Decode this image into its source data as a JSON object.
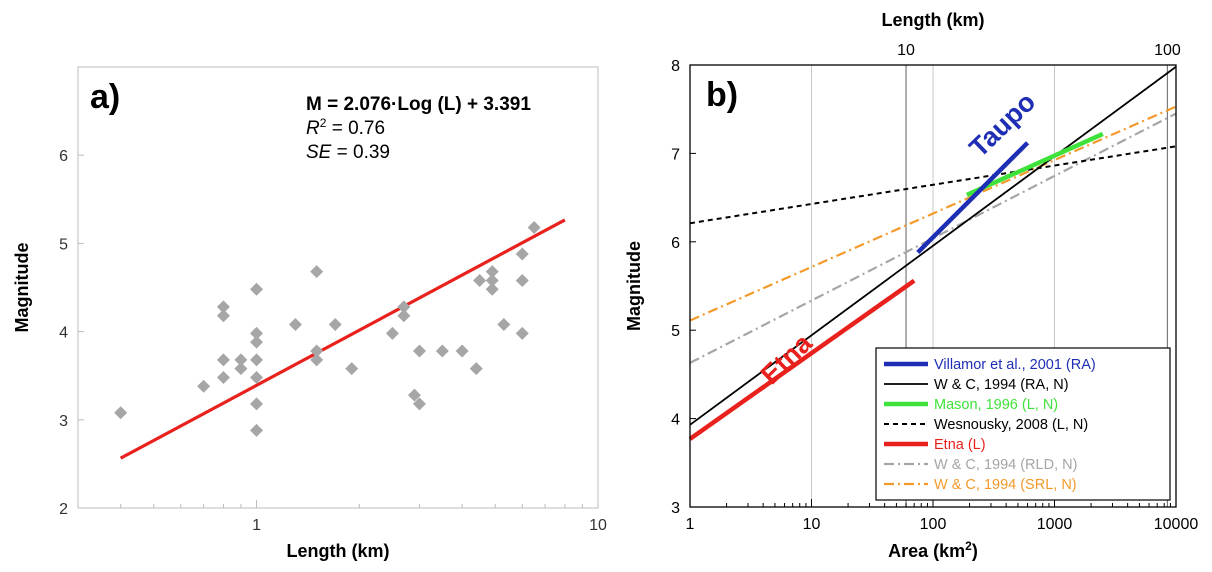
{
  "chart_data": [
    {
      "type": "scatter",
      "panel_label": "a)",
      "xlabel": "Length (km)",
      "ylabel": "Magnitude",
      "xscale": "log",
      "xlim": [
        0.3,
        10
      ],
      "ylim": [
        2,
        7
      ],
      "x_ticks": [
        {
          "v": 1,
          "label": "1"
        },
        {
          "v": 10,
          "label": "10"
        }
      ],
      "y_ticks": [
        {
          "v": 2,
          "label": "2"
        },
        {
          "v": 3,
          "label": "3"
        },
        {
          "v": 4,
          "label": "4"
        },
        {
          "v": 5,
          "label": "5"
        },
        {
          "v": 6,
          "label": "6"
        }
      ],
      "grid": false,
      "equation": {
        "line1": "M = 2.076·Log (L) + 3.391",
        "r2_label": "R",
        "r2_sup": "2",
        "r2_value": " = 0.76",
        "se_label": "SE",
        "se_value": " = 0.39"
      },
      "fit": {
        "slope": 2.076,
        "intercept": 3.391,
        "x_range": [
          0.4,
          8
        ],
        "color": "#e8211d"
      },
      "marker_color": "#a6a6a6",
      "points": [
        {
          "x": 0.4,
          "y": 3.08
        },
        {
          "x": 0.7,
          "y": 3.38
        },
        {
          "x": 0.8,
          "y": 3.48
        },
        {
          "x": 0.8,
          "y": 3.68
        },
        {
          "x": 0.8,
          "y": 4.18
        },
        {
          "x": 0.8,
          "y": 4.28
        },
        {
          "x": 0.9,
          "y": 3.58
        },
        {
          "x": 0.9,
          "y": 3.68
        },
        {
          "x": 1.0,
          "y": 2.88
        },
        {
          "x": 1.0,
          "y": 3.18
        },
        {
          "x": 1.0,
          "y": 3.48
        },
        {
          "x": 1.0,
          "y": 3.68
        },
        {
          "x": 1.0,
          "y": 3.88
        },
        {
          "x": 1.0,
          "y": 3.98
        },
        {
          "x": 1.0,
          "y": 4.48
        },
        {
          "x": 1.3,
          "y": 4.08
        },
        {
          "x": 1.5,
          "y": 3.68
        },
        {
          "x": 1.5,
          "y": 3.78
        },
        {
          "x": 1.5,
          "y": 4.68
        },
        {
          "x": 1.7,
          "y": 4.08
        },
        {
          "x": 1.9,
          "y": 3.58
        },
        {
          "x": 2.5,
          "y": 3.98
        },
        {
          "x": 2.7,
          "y": 4.18
        },
        {
          "x": 2.7,
          "y": 4.28
        },
        {
          "x": 2.9,
          "y": 3.28
        },
        {
          "x": 3.0,
          "y": 3.18
        },
        {
          "x": 3.0,
          "y": 3.78
        },
        {
          "x": 3.5,
          "y": 3.78
        },
        {
          "x": 4.0,
          "y": 3.78
        },
        {
          "x": 4.4,
          "y": 3.58
        },
        {
          "x": 4.5,
          "y": 4.58
        },
        {
          "x": 4.9,
          "y": 4.48
        },
        {
          "x": 4.9,
          "y": 4.58
        },
        {
          "x": 4.9,
          "y": 4.68
        },
        {
          "x": 5.3,
          "y": 4.08
        },
        {
          "x": 6.0,
          "y": 3.98
        },
        {
          "x": 6.0,
          "y": 4.58
        },
        {
          "x": 6.0,
          "y": 4.88
        },
        {
          "x": 6.5,
          "y": 5.18
        }
      ]
    },
    {
      "type": "line",
      "panel_label": "b)",
      "xlabel": "Area (km",
      "xlabel_sup": "2",
      "xlabel_end": ")",
      "ylabel": "Magnitude",
      "top_xlabel": "Length (km)",
      "xscale": "log",
      "xlim": [
        1,
        10000
      ],
      "ylim": [
        3,
        8
      ],
      "x_ticks": [
        {
          "v": 1,
          "label": "1"
        },
        {
          "v": 10,
          "label": "10"
        },
        {
          "v": 100,
          "label": "100"
        },
        {
          "v": 1000,
          "label": "1000"
        },
        {
          "v": 10000,
          "label": "10000"
        }
      ],
      "y_ticks": [
        {
          "v": 3,
          "label": "3"
        },
        {
          "v": 4,
          "label": "4"
        },
        {
          "v": 5,
          "label": "5"
        },
        {
          "v": 6,
          "label": "6"
        },
        {
          "v": 7,
          "label": "7"
        },
        {
          "v": 8,
          "label": "8"
        }
      ],
      "top_ticks": [
        {
          "area": 60,
          "label": "10"
        },
        {
          "area": 8500,
          "label": "100"
        }
      ],
      "vertical_gridlines": [
        10,
        100,
        1000,
        10000
      ],
      "series": [
        {
          "name": "Villamor et al., 2001 (RA)",
          "color": "#1f2fb5",
          "dash": "",
          "width": 4.5,
          "points": [
            [
              75,
              5.88
            ],
            [
              600,
              7.12
            ]
          ]
        },
        {
          "name": "W & C, 1994 (RA, N)",
          "color": "#000000",
          "dash": "",
          "width": 1.8,
          "points": [
            [
              1,
              3.93
            ],
            [
              10000,
              7.98
            ]
          ]
        },
        {
          "name": "Mason, 1996 (L, N)",
          "color": "#3ee23a",
          "dash": "",
          "width": 4.5,
          "points": [
            [
              190,
              6.53
            ],
            [
              2500,
              7.22
            ]
          ]
        },
        {
          "name": "Wesnousky, 2008 (L, N)",
          "color": "#000000",
          "dash": "5,4",
          "width": 2,
          "points": [
            [
              1,
              6.21
            ],
            [
              10000,
              7.08
            ]
          ]
        },
        {
          "name": "Etna (L)",
          "color": "#e8211d",
          "dash": "",
          "width": 4.5,
          "points": [
            [
              1,
              3.77
            ],
            [
              70,
              5.56
            ]
          ]
        },
        {
          "name": "W & C, 1994 (RLD, N)",
          "color": "#a6a6a6",
          "dash": "10,4,2,4",
          "width": 2.2,
          "points": [
            [
              1,
              4.63
            ],
            [
              10000,
              7.45
            ]
          ]
        },
        {
          "name": "W & C, 1994 (SRL, N)",
          "color": "#f39a2a",
          "dash": "10,4,2,4",
          "width": 2.2,
          "points": [
            [
              1,
              5.11
            ],
            [
              10000,
              7.53
            ]
          ]
        }
      ],
      "annotations": [
        {
          "text": "Taupo",
          "color": "#1f2fb5",
          "x": 420,
          "y": 7.25,
          "angle": -44
        },
        {
          "text": "Etna",
          "color": "#e8211d",
          "x": 7,
          "y": 4.6,
          "angle": -44
        }
      ],
      "legend_placement": "bottom-right"
    }
  ]
}
